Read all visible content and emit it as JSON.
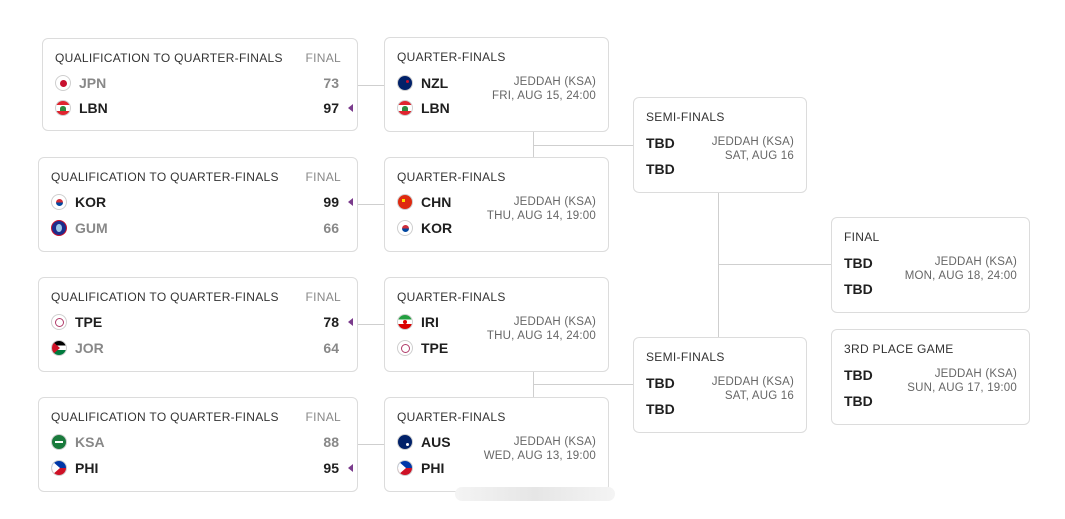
{
  "qualification": [
    {
      "title": "QUALIFICATION TO QUARTER-FINALS",
      "status": "FINAL",
      "teams": [
        {
          "code": "JPN",
          "score": "73",
          "flag": "japan-flag-icon",
          "winner": false
        },
        {
          "code": "LBN",
          "score": "97",
          "flag": "lebanon-flag-icon",
          "winner": true
        }
      ]
    },
    {
      "title": "QUALIFICATION TO QUARTER-FINALS",
      "status": "FINAL",
      "teams": [
        {
          "code": "KOR",
          "score": "99",
          "flag": "korea-flag-icon",
          "winner": true
        },
        {
          "code": "GUM",
          "score": "66",
          "flag": "guam-flag-icon",
          "winner": false
        }
      ]
    },
    {
      "title": "QUALIFICATION TO QUARTER-FINALS",
      "status": "FINAL",
      "teams": [
        {
          "code": "TPE",
          "score": "78",
          "flag": "chinese-taipei-flag-icon",
          "winner": true
        },
        {
          "code": "JOR",
          "score": "64",
          "flag": "jordan-flag-icon",
          "winner": false
        }
      ]
    },
    {
      "title": "QUALIFICATION TO QUARTER-FINALS",
      "status": "FINAL",
      "teams": [
        {
          "code": "KSA",
          "score": "88",
          "flag": "saudi-arabia-flag-icon",
          "winner": false
        },
        {
          "code": "PHI",
          "score": "95",
          "flag": "philippines-flag-icon",
          "winner": true
        }
      ]
    }
  ],
  "quarterfinals": [
    {
      "title": "QUARTER-FINALS",
      "venue": "JEDDAH (KSA)",
      "date": "FRI, AUG 15, 24:00",
      "teams": [
        {
          "code": "NZL",
          "flag": "new-zealand-flag-icon"
        },
        {
          "code": "LBN",
          "flag": "lebanon-flag-icon"
        }
      ]
    },
    {
      "title": "QUARTER-FINALS",
      "venue": "JEDDAH (KSA)",
      "date": "THU, AUG 14, 19:00",
      "teams": [
        {
          "code": "CHN",
          "flag": "china-flag-icon"
        },
        {
          "code": "KOR",
          "flag": "korea-flag-icon"
        }
      ]
    },
    {
      "title": "QUARTER-FINALS",
      "venue": "JEDDAH (KSA)",
      "date": "THU, AUG 14, 24:00",
      "teams": [
        {
          "code": "IRI",
          "flag": "iran-flag-icon"
        },
        {
          "code": "TPE",
          "flag": "chinese-taipei-flag-icon"
        }
      ]
    },
    {
      "title": "QUARTER-FINALS",
      "venue": "JEDDAH (KSA)",
      "date": "WED, AUG 13, 19:00",
      "teams": [
        {
          "code": "AUS",
          "flag": "australia-flag-icon"
        },
        {
          "code": "PHI",
          "flag": "philippines-flag-icon"
        }
      ]
    }
  ],
  "semifinals": [
    {
      "title": "SEMI-FINALS",
      "venue": "JEDDAH (KSA)",
      "date": "SAT, AUG 16",
      "teams": [
        "TBD",
        "TBD"
      ]
    },
    {
      "title": "SEMI-FINALS",
      "venue": "JEDDAH (KSA)",
      "date": "SAT, AUG 16",
      "teams": [
        "TBD",
        "TBD"
      ]
    }
  ],
  "final": {
    "title": "FINAL",
    "venue": "JEDDAH (KSA)",
    "date": "MON, AUG 18, 24:00",
    "teams": [
      "TBD",
      "TBD"
    ]
  },
  "third_place": {
    "title": "3RD PLACE GAME",
    "venue": "JEDDAH (KSA)",
    "date": "SUN, AUG 17, 19:00",
    "teams": [
      "TBD",
      "TBD"
    ]
  },
  "colors": {
    "win_marker": "#7a3b8c",
    "border": "#dcdcdc",
    "muted": "#888888"
  }
}
